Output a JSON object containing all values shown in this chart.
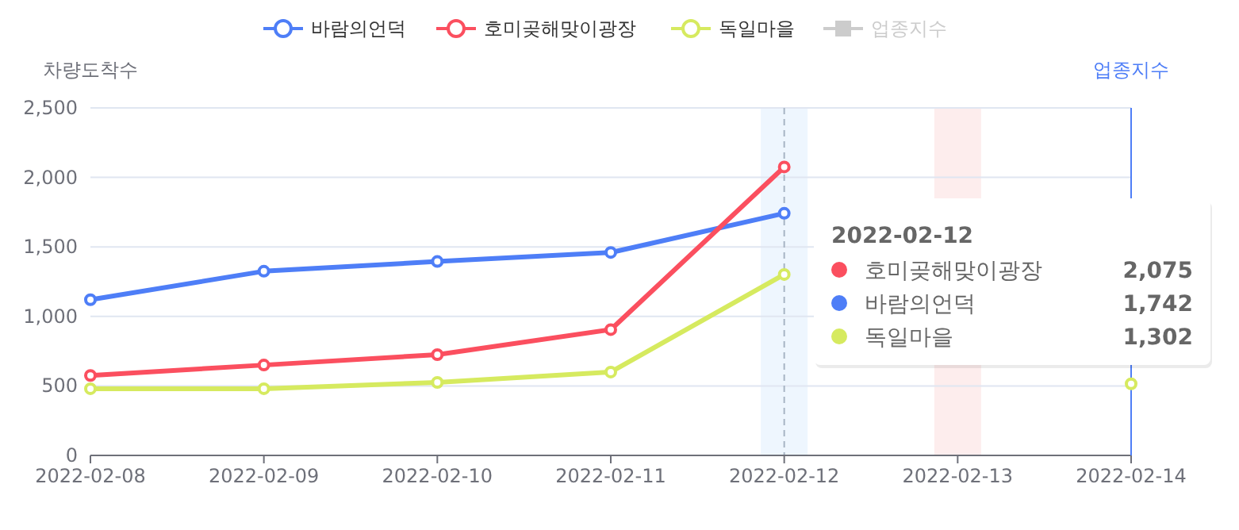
{
  "chart_data": {
    "type": "line",
    "categories": [
      "2022-02-08",
      "2022-02-09",
      "2022-02-10",
      "2022-02-11",
      "2022-02-12",
      "2022-02-13",
      "2022-02-14"
    ],
    "ylabel": "차량도착수",
    "y2label": "업종지수",
    "ylim": [
      0,
      2500
    ],
    "yticks": [
      {
        "value": 0,
        "label": "0"
      },
      {
        "value": 500,
        "label": "500"
      },
      {
        "value": 1000,
        "label": "1,000"
      },
      {
        "value": 1500,
        "label": "1,500"
      },
      {
        "value": 2000,
        "label": "2,000"
      },
      {
        "value": 2500,
        "label": "2,500"
      }
    ],
    "grid": "y",
    "legend": "top",
    "marker": "circle",
    "series": [
      {
        "name": "바람의언덕",
        "color": "#4e7ef7",
        "values": [
          1120,
          1325,
          1395,
          1460,
          1742,
          null,
          null
        ]
      },
      {
        "name": "호미곶해맞이광장",
        "color": "#fb4f5f",
        "values": [
          575,
          650,
          725,
          905,
          2075,
          null,
          null
        ]
      },
      {
        "name": "독일마을",
        "color": "#d6ea5f",
        "values": [
          480,
          480,
          525,
          600,
          1302,
          null,
          515
        ]
      },
      {
        "name": "업종지수",
        "color": "#cccccc",
        "axis": "y2",
        "marker": "square",
        "values": [
          null,
          null,
          null,
          null,
          null,
          null,
          null
        ]
      }
    ],
    "bands": [
      {
        "axis": "x",
        "from": "2022-02-12",
        "to": "2022-02-12",
        "color": "#eef6fe"
      },
      {
        "axis": "x",
        "from": "2022-02-13",
        "to": "2022-02-13",
        "color": "#fdeded"
      }
    ],
    "ref_lines": [
      {
        "axis": "x",
        "value": "2022-02-12",
        "color": "#a7b4c4",
        "line_style": "dashed"
      }
    ],
    "annotations": [
      "2022-02-12",
      "호미곶해맞이광장",
      "2,075",
      "바람의언덕",
      "1,742",
      "독일마을",
      "1,302"
    ]
  }
}
